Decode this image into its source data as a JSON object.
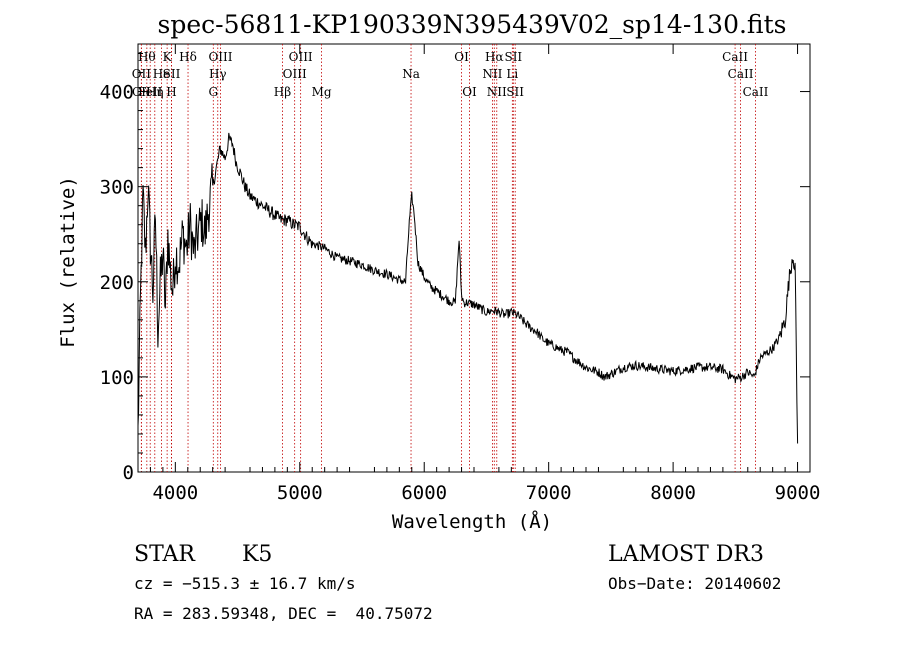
{
  "chart_data": {
    "type": "line",
    "title": "spec-56811-KP190339N395439V02_sp14-130.fits",
    "xlabel": "Wavelength (Å)",
    "ylabel": "Flux (relative)",
    "xlim": [
      3700,
      9100
    ],
    "ylim": [
      0,
      450
    ],
    "xticks": [
      4000,
      5000,
      6000,
      7000,
      8000,
      9000
    ],
    "yticks": [
      0,
      100,
      200,
      300,
      400
    ],
    "grid": false,
    "series": [
      {
        "name": "flux",
        "x": [
          3700,
          3720,
          3740,
          3760,
          3780,
          3800,
          3820,
          3840,
          3860,
          3880,
          3900,
          3920,
          3940,
          3960,
          3980,
          4000,
          4030,
          4060,
          4090,
          4120,
          4150,
          4180,
          4210,
          4240,
          4270,
          4300,
          4330,
          4360,
          4400,
          4430,
          4460,
          4490,
          4520,
          4560,
          4600,
          4650,
          4700,
          4750,
          4800,
          4850,
          4900,
          4950,
          5000,
          5050,
          5100,
          5150,
          5200,
          5300,
          5400,
          5500,
          5600,
          5700,
          5800,
          5850,
          5880,
          5900,
          5920,
          5950,
          6000,
          6050,
          6100,
          6150,
          6200,
          6250,
          6280,
          6300,
          6320,
          6350,
          6400,
          6450,
          6500,
          6550,
          6600,
          6650,
          6700,
          6750,
          6800,
          6850,
          6900,
          6950,
          7000,
          7050,
          7100,
          7150,
          7200,
          7300,
          7400,
          7450,
          7500,
          7600,
          7700,
          7800,
          7900,
          8000,
          8100,
          8200,
          8300,
          8400,
          8450,
          8500,
          8550,
          8600,
          8650,
          8700,
          8750,
          8800,
          8850,
          8900,
          8930,
          8960,
          8980,
          9000
        ],
        "y": [
          40,
          180,
          290,
          230,
          300,
          240,
          190,
          270,
          150,
          200,
          230,
          170,
          250,
          210,
          190,
          230,
          220,
          250,
          235,
          260,
          230,
          250,
          265,
          250,
          280,
          300,
          320,
          340,
          330,
          350,
          345,
          325,
          315,
          300,
          290,
          285,
          280,
          275,
          270,
          265,
          265,
          260,
          258,
          248,
          240,
          238,
          235,
          225,
          222,
          218,
          212,
          208,
          202,
          200,
          262,
          290,
          270,
          220,
          205,
          195,
          190,
          185,
          180,
          178,
          245,
          185,
          178,
          178,
          176,
          172,
          168,
          170,
          168,
          165,
          168,
          165,
          158,
          152,
          148,
          140,
          135,
          132,
          128,
          126,
          120,
          110,
          105,
          100,
          103,
          110,
          112,
          110,
          108,
          106,
          108,
          110,
          110,
          108,
          102,
          98,
          100,
          105,
          100,
          120,
          125,
          130,
          140,
          160,
          200,
          228,
          218,
          30
        ]
      }
    ],
    "lines": [
      {
        "label": "OII",
        "x": 3727,
        "row": 2
      },
      {
        "label": "CII",
        "x": 3727,
        "row": 3
      },
      {
        "label": "Hθ",
        "x": 3771,
        "row": 1
      },
      {
        "label": "FeII",
        "x": 3798,
        "row": 3
      },
      {
        "label": "Hη",
        "x": 3835,
        "row": 3
      },
      {
        "label": "He",
        "x": 3889,
        "row": 2
      },
      {
        "label": "K",
        "x": 3934,
        "row": 1
      },
      {
        "label": "SII",
        "x": 3969,
        "row": 2
      },
      {
        "label": "H",
        "x": 3969,
        "row": 3
      },
      {
        "label": "Hδ",
        "x": 4102,
        "row": 1
      },
      {
        "label": "OIII",
        "x": 4363,
        "row": 1
      },
      {
        "label": "Hγ",
        "x": 4341,
        "row": 2
      },
      {
        "label": "G",
        "x": 4305,
        "row": 3
      },
      {
        "label": "Hβ",
        "x": 4861,
        "row": 3
      },
      {
        "label": "OIII",
        "x": 4959,
        "row": 2
      },
      {
        "label": "OIII",
        "x": 5007,
        "row": 1
      },
      {
        "label": "Mg",
        "x": 5175,
        "row": 3
      },
      {
        "label": "Na",
        "x": 5894,
        "row": 2
      },
      {
        "label": "OI",
        "x": 6300,
        "row": 1
      },
      {
        "label": "OI",
        "x": 6364,
        "row": 3
      },
      {
        "label": "Hα",
        "x": 6563,
        "row": 1
      },
      {
        "label": "NII",
        "x": 6548,
        "row": 2
      },
      {
        "label": "NII",
        "x": 6583,
        "row": 3
      },
      {
        "label": "SII",
        "x": 6716,
        "row": 1
      },
      {
        "label": "Li",
        "x": 6708,
        "row": 2
      },
      {
        "label": "SII",
        "x": 6731,
        "row": 3
      },
      {
        "label": "CaII",
        "x": 8498,
        "row": 1
      },
      {
        "label": "CaII",
        "x": 8542,
        "row": 2
      },
      {
        "label": "CaII",
        "x": 8662,
        "row": 3
      }
    ]
  },
  "info": {
    "class": "STAR",
    "subclass": "K5",
    "survey": "LAMOST DR3",
    "cz": "cz = −515.3 ± 16.7 km/s",
    "obs_date": "Obs−Date: 20140602",
    "radec": "RA = 283.59348, DEC =  40.75072"
  },
  "colors": {
    "line": "#000000",
    "marker": "#c00000"
  }
}
